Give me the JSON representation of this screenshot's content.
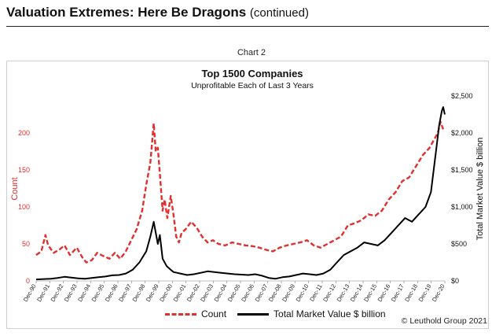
{
  "header": {
    "title": "Valuation Extremes: Here Be Dragons",
    "title_suffix": "(continued)"
  },
  "caption": "Chart 2",
  "copyright": "© Leuthold Group 2021",
  "colors": {
    "count": "#e03030",
    "value": "#000000"
  },
  "chart_data": {
    "type": "line",
    "title": "Top 1500 Companies",
    "subtitle": "Unprofitable Each of Last 3 Years",
    "ylabel_left": "Count",
    "ylabel_right": "Total Market Value $ billion",
    "ylim_left": [
      0,
      250
    ],
    "ylim_right": [
      0,
      2500
    ],
    "yticks_left": [
      "0",
      "50",
      "100",
      "150",
      "200"
    ],
    "yticks_right": [
      "$0",
      "$500",
      "$1,000",
      "$1,500",
      "$2,000",
      "$2,500"
    ],
    "xlim": [
      1990.92,
      2020.92
    ],
    "x_tick_labels": [
      "Dec-90",
      "Dec-91",
      "Dec-92",
      "Dec-93",
      "Dec-94",
      "Dec-95",
      "Dec-96",
      "Dec-97",
      "Dec-98",
      "Dec-99",
      "Dec-00",
      "Dec-01",
      "Dec-02",
      "Dec-03",
      "Dec-04",
      "Dec-05",
      "Dec-06",
      "Dec-07",
      "Dec-08",
      "Dec-09",
      "Dec-10",
      "Dec-11",
      "Dec-12",
      "Dec-13",
      "Dec-14",
      "Dec-15",
      "Dec-16",
      "Dec-17",
      "Dec-18",
      "Dec-19",
      "Dec-20"
    ],
    "series": [
      {
        "name": "Count",
        "axis": "left",
        "style": "dashed",
        "x": [
          1990.92,
          1991.3,
          1991.6,
          1991.8,
          1992.2,
          1992.6,
          1993.0,
          1993.4,
          1993.9,
          1994.3,
          1994.6,
          1995.0,
          1995.4,
          1995.8,
          1996.3,
          1996.7,
          1997.1,
          1997.5,
          1997.9,
          1998.3,
          1998.7,
          1999.0,
          1999.3,
          1999.55,
          1999.7,
          1999.85,
          2000.0,
          2000.2,
          2000.35,
          2000.55,
          2000.8,
          2001.0,
          2001.2,
          2001.4,
          2001.6,
          2001.9,
          2002.3,
          2002.7,
          2003.1,
          2003.5,
          2003.9,
          2004.3,
          2004.8,
          2005.3,
          2005.8,
          2006.3,
          2006.8,
          2007.3,
          2007.8,
          2008.3,
          2008.8,
          2009.3,
          2009.8,
          2010.3,
          2010.8,
          2011.3,
          2011.8,
          2012.3,
          2012.8,
          2013.3,
          2013.8,
          2014.3,
          2014.8,
          2015.3,
          2015.8,
          2016.3,
          2016.8,
          2017.3,
          2017.8,
          2018.3,
          2018.8,
          2019.3,
          2019.8,
          2020.1,
          2020.4,
          2020.6,
          2020.8
        ],
        "values": [
          35,
          40,
          62,
          48,
          38,
          42,
          48,
          35,
          45,
          32,
          25,
          28,
          38,
          34,
          30,
          38,
          30,
          40,
          55,
          70,
          95,
          130,
          160,
          213,
          175,
          180,
          145,
          95,
          110,
          85,
          115,
          90,
          60,
          52,
          65,
          70,
          80,
          72,
          60,
          52,
          55,
          50,
          48,
          52,
          50,
          48,
          47,
          45,
          42,
          40,
          45,
          48,
          50,
          52,
          55,
          48,
          45,
          50,
          55,
          60,
          75,
          78,
          82,
          90,
          88,
          95,
          110,
          120,
          135,
          140,
          155,
          170,
          180,
          190,
          200,
          215,
          205
        ]
      },
      {
        "name": "Total Market Value $ billion",
        "axis": "right",
        "style": "solid",
        "x": [
          1990.92,
          1991.5,
          1992.0,
          1992.5,
          1993.0,
          1993.5,
          1994.0,
          1994.5,
          1995.0,
          1995.5,
          1996.0,
          1996.5,
          1997.0,
          1997.5,
          1998.0,
          1998.5,
          1999.0,
          1999.3,
          1999.55,
          1999.7,
          1999.85,
          2000.0,
          2000.2,
          2000.5,
          2000.8,
          2001.0,
          2001.5,
          2002.0,
          2002.5,
          2003.0,
          2003.5,
          2004.0,
          2004.5,
          2005.0,
          2005.5,
          2006.0,
          2006.5,
          2007.0,
          2007.5,
          2008.0,
          2008.5,
          2009.0,
          2009.5,
          2010.0,
          2010.5,
          2011.0,
          2011.5,
          2012.0,
          2012.5,
          2013.0,
          2013.5,
          2014.0,
          2014.5,
          2015.0,
          2015.5,
          2016.0,
          2016.5,
          2017.0,
          2017.5,
          2018.0,
          2018.5,
          2019.0,
          2019.5,
          2019.9,
          2020.1,
          2020.3,
          2020.5,
          2020.7,
          2020.8,
          2020.92
        ],
        "values": [
          20,
          25,
          30,
          40,
          55,
          45,
          35,
          30,
          40,
          50,
          60,
          75,
          80,
          100,
          150,
          250,
          400,
          600,
          800,
          650,
          500,
          620,
          300,
          200,
          150,
          120,
          100,
          80,
          90,
          110,
          130,
          120,
          110,
          100,
          90,
          85,
          80,
          90,
          70,
          40,
          30,
          50,
          60,
          80,
          100,
          90,
          80,
          100,
          150,
          250,
          350,
          400,
          450,
          520,
          500,
          480,
          550,
          650,
          750,
          850,
          800,
          900,
          1000,
          1200,
          1500,
          1800,
          2100,
          2300,
          2350,
          2250
        ]
      }
    ]
  }
}
